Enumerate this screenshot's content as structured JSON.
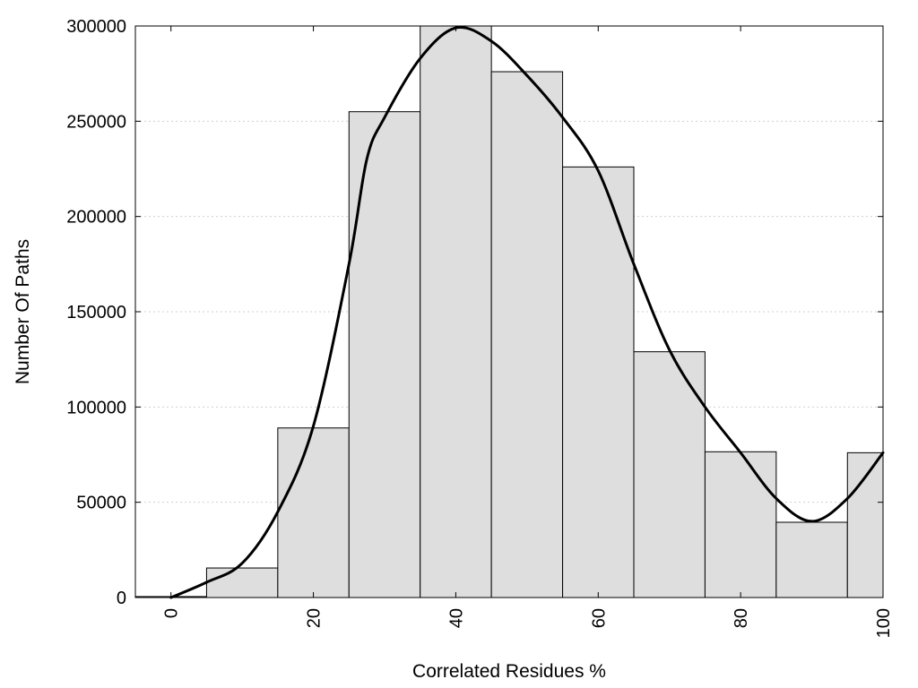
{
  "chart_data": {
    "type": "bar",
    "title": "",
    "xlabel": "Correlated Residues %",
    "ylabel": "Number Of Paths",
    "xlim": [
      -5,
      100
    ],
    "ylim": [
      0,
      300000
    ],
    "x_ticks": [
      "0",
      "20",
      "40",
      "60",
      "80",
      "100"
    ],
    "x_tick_values": [
      0,
      20,
      40,
      60,
      80,
      100
    ],
    "y_ticks": [
      "0",
      "50000",
      "100000",
      "150000",
      "200000",
      "250000",
      "300000"
    ],
    "y_tick_values": [
      0,
      50000,
      100000,
      150000,
      200000,
      250000,
      300000
    ],
    "grid": true,
    "bin_width": 10,
    "series": [
      {
        "type": "histogram",
        "x": [
          0,
          10,
          20,
          30,
          40,
          50,
          60,
          70,
          80,
          90,
          100
        ],
        "values": [
          500,
          15500,
          89000,
          255000,
          300000,
          276000,
          226000,
          129000,
          76500,
          39500,
          76000
        ]
      },
      {
        "type": "line",
        "x": [
          0,
          5,
          10,
          15,
          20,
          25,
          27.5,
          30,
          35,
          40,
          45,
          50,
          55,
          60,
          65,
          70,
          75,
          80,
          85,
          90,
          95,
          100
        ],
        "values": [
          0,
          8000,
          18000,
          45000,
          90000,
          175000,
          230000,
          252000,
          283000,
          299000,
          292000,
          274000,
          252000,
          224000,
          175000,
          130000,
          100000,
          76000,
          52000,
          40000,
          52000,
          76000
        ]
      }
    ],
    "colors": {
      "bar_fill": "#dedede",
      "bar_stroke": "#000000",
      "line": "#000000",
      "grid": "#d0d0d0"
    }
  }
}
